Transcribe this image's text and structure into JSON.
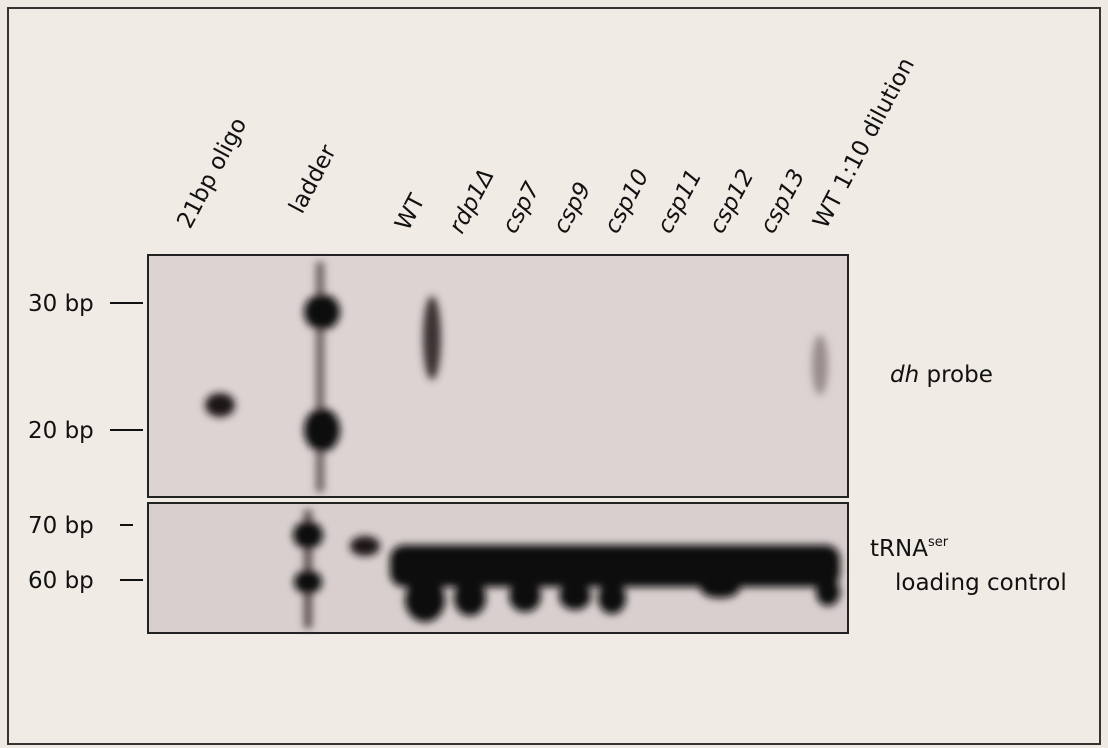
{
  "lanes": [
    "21bp oligo",
    "ladder",
    "WT",
    "rdp1Δ",
    "csp7",
    "csp9",
    "csp10",
    "csp11",
    "csp12",
    "csp13",
    "WT 1:10 dilution"
  ],
  "top_panel": {
    "markers": [
      "30 bp",
      "20 bp"
    ],
    "label_italic": "dh",
    "label": "probe"
  },
  "bottom_panel": {
    "markers": [
      "70 bp",
      "60 bp"
    ],
    "label": "tRNA",
    "label_superscript": "ser",
    "label_line2": "loading control"
  }
}
